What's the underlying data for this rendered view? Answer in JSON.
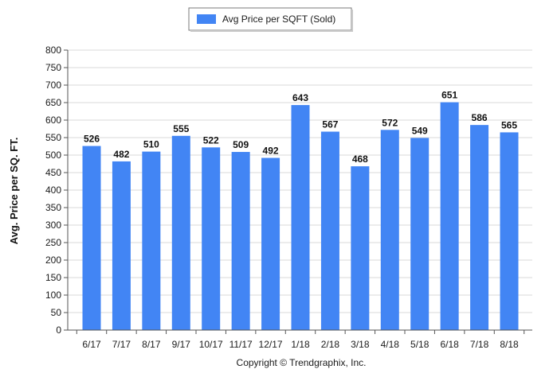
{
  "chart_data": {
    "type": "bar",
    "categories": [
      "6/17",
      "7/17",
      "8/17",
      "9/17",
      "10/17",
      "11/17",
      "12/17",
      "1/18",
      "2/18",
      "3/18",
      "4/18",
      "5/18",
      "6/18",
      "7/18",
      "8/18"
    ],
    "series": [
      {
        "name": "Avg Price per SQFT (Sold)",
        "values": [
          526,
          482,
          510,
          555,
          522,
          509,
          492,
          643,
          567,
          468,
          572,
          549,
          651,
          586,
          565
        ],
        "color": "#4285f4"
      }
    ],
    "ylabel": "Avg. Price per SQ. FT.",
    "xlabel": "",
    "ylim": [
      0,
      800
    ],
    "yticks": [
      0,
      50,
      100,
      150,
      200,
      250,
      300,
      350,
      400,
      450,
      500,
      550,
      600,
      650,
      700,
      750,
      800
    ],
    "grid": true,
    "legend_position": "top-center",
    "data_labels": true
  },
  "footer": {
    "copyright": "Copyright © Trendgraphix, Inc."
  }
}
